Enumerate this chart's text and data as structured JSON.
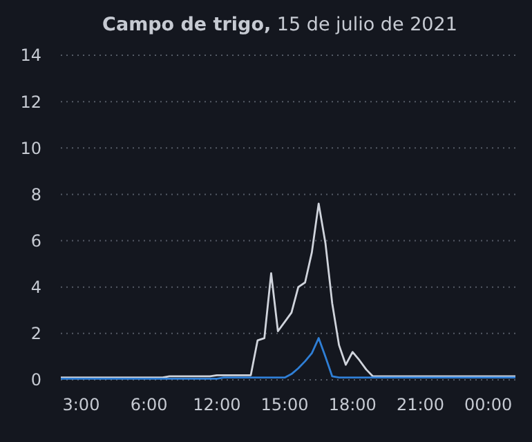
{
  "chart_data": {
    "type": "line",
    "title": "Campo de trigo,",
    "subtitle": "15 de julio de 2021",
    "categories": [
      null,
      null,
      null,
      "3:00",
      null,
      null,
      null,
      null,
      null,
      null,
      null,
      null,
      null,
      "6:00",
      null,
      null,
      null,
      null,
      null,
      null,
      null,
      null,
      null,
      "12:00",
      null,
      null,
      null,
      null,
      null,
      null,
      null,
      null,
      null,
      "15:00",
      null,
      null,
      null,
      null,
      null,
      null,
      null,
      null,
      null,
      "18:00",
      null,
      null,
      null,
      null,
      null,
      null,
      null,
      null,
      null,
      "21:00",
      null,
      null,
      null,
      null,
      null,
      null,
      null,
      null,
      null,
      "00:00",
      null,
      null,
      null,
      null
    ],
    "ylim": [
      0,
      14
    ],
    "yticks": [
      0,
      2,
      4,
      6,
      8,
      10,
      12,
      14
    ],
    "grid": "y",
    "line_style": "solid",
    "marker": "none",
    "series": [
      {
        "color": "#d0d4dc",
        "values": [
          0.1,
          0.1,
          0.1,
          0.1,
          0.1,
          0.1,
          0.1,
          0.1,
          0.1,
          0.1,
          0.1,
          0.1,
          0.1,
          0.1,
          0.1,
          0.1,
          0.15,
          0.15,
          0.15,
          0.15,
          0.15,
          0.15,
          0.15,
          0.2,
          0.2,
          0.2,
          0.2,
          0.2,
          0.2,
          1.7,
          1.8,
          4.6,
          2.1,
          2.5,
          2.9,
          4.0,
          4.2,
          5.5,
          7.6,
          5.9,
          3.3,
          1.5,
          0.65,
          1.2,
          0.85,
          0.45,
          0.15,
          0.15,
          0.15,
          0.15,
          0.15,
          0.15,
          0.15,
          0.15,
          0.15,
          0.15,
          0.15,
          0.15,
          0.15,
          0.15,
          0.15,
          0.15,
          0.15,
          0.15,
          0.15,
          0.15,
          0.15,
          0.15
        ]
      },
      {
        "color": "#2f7fd6",
        "values": [
          0.05,
          0.05,
          0.05,
          0.05,
          0.05,
          0.05,
          0.05,
          0.05,
          0.05,
          0.05,
          0.05,
          0.05,
          0.05,
          0.05,
          0.05,
          0.05,
          0.05,
          0.05,
          0.05,
          0.05,
          0.05,
          0.05,
          0.05,
          0.05,
          0.1,
          0.1,
          0.1,
          0.1,
          0.1,
          0.1,
          0.1,
          0.1,
          0.1,
          0.1,
          0.25,
          0.5,
          0.8,
          1.15,
          1.8,
          1.0,
          0.15,
          0.1,
          0.1,
          0.1,
          0.1,
          0.1,
          0.1,
          0.1,
          0.1,
          0.1,
          0.1,
          0.1,
          0.1,
          0.1,
          0.1,
          0.1,
          0.1,
          0.1,
          0.1,
          0.1,
          0.1,
          0.1,
          0.1,
          0.1,
          0.1,
          0.1,
          0.1,
          0.1
        ]
      }
    ]
  }
}
